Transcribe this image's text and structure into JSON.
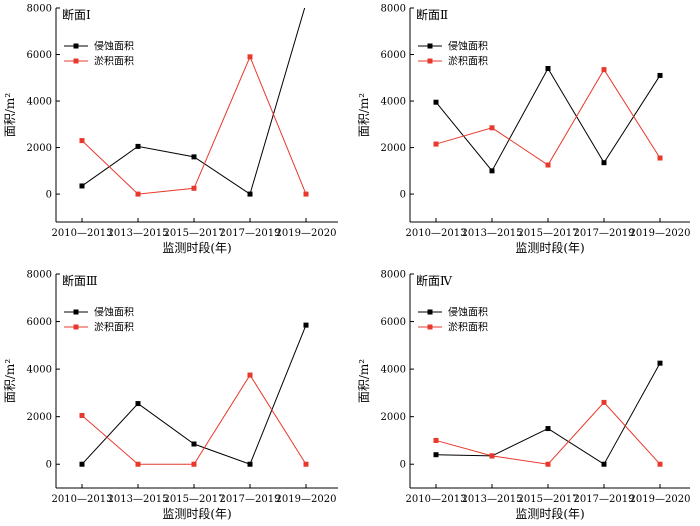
{
  "chart_data": [
    {
      "type": "line",
      "title": "断面Ⅰ",
      "xlabel": "监测时段(年)",
      "ylabel": "面积/m²",
      "categories": [
        "2010—2013",
        "2013—2015",
        "2015—2017",
        "2017—2019",
        "2019—2020"
      ],
      "ylim": [
        -1200,
        8000
      ],
      "yticks": [
        0,
        2000,
        4000,
        6000,
        8000
      ],
      "legend": "top-left",
      "series": [
        {
          "name": "侵蚀面积",
          "color": "#000000",
          "values": [
            350,
            2050,
            1600,
            0,
            8200
          ]
        },
        {
          "name": "淤积面积",
          "color": "#e8382c",
          "values": [
            2300,
            0,
            250,
            5900,
            0
          ]
        }
      ]
    },
    {
      "type": "line",
      "title": "断面Ⅱ",
      "xlabel": "监测时段(年)",
      "ylabel": "面积/m²",
      "categories": [
        "2010—2013",
        "2013—2015",
        "2015—2017",
        "2017—2019",
        "2019—2020"
      ],
      "ylim": [
        -1200,
        8000
      ],
      "yticks": [
        0,
        2000,
        4000,
        6000,
        8000
      ],
      "legend": "top-left",
      "series": [
        {
          "name": "侵蚀面积",
          "color": "#000000",
          "values": [
            3950,
            1000,
            5400,
            1350,
            5100
          ]
        },
        {
          "name": "淤积面积",
          "color": "#e8382c",
          "values": [
            2150,
            2850,
            1250,
            5350,
            1550
          ]
        }
      ]
    },
    {
      "type": "line",
      "title": "断面Ⅲ",
      "xlabel": "监测时段(年)",
      "ylabel": "面积/m²",
      "categories": [
        "2010—2013",
        "2013—2015",
        "2015—2017",
        "2017—2019",
        "2019—2020"
      ],
      "ylim": [
        -1000,
        8000
      ],
      "yticks": [
        0,
        2000,
        4000,
        6000,
        8000
      ],
      "legend": "top-left",
      "series": [
        {
          "name": "侵蚀面积",
          "color": "#000000",
          "values": [
            0,
            2550,
            850,
            0,
            5850
          ]
        },
        {
          "name": "淤积面积",
          "color": "#e8382c",
          "values": [
            2050,
            0,
            0,
            3750,
            0
          ]
        }
      ]
    },
    {
      "type": "line",
      "title": "断面Ⅳ",
      "xlabel": "监测时段(年)",
      "ylabel": "面积/m²",
      "categories": [
        "2010—2013",
        "2013—2015",
        "2015—2017",
        "2017—2019",
        "2019—2020"
      ],
      "ylim": [
        -1000,
        8000
      ],
      "yticks": [
        0,
        2000,
        4000,
        6000,
        8000
      ],
      "legend": "top-left",
      "series": [
        {
          "name": "侵蚀面积",
          "color": "#000000",
          "values": [
            400,
            350,
            1500,
            0,
            4250
          ]
        },
        {
          "name": "淤积面积",
          "color": "#e8382c",
          "values": [
            1000,
            350,
            0,
            2600,
            0
          ]
        }
      ]
    }
  ]
}
